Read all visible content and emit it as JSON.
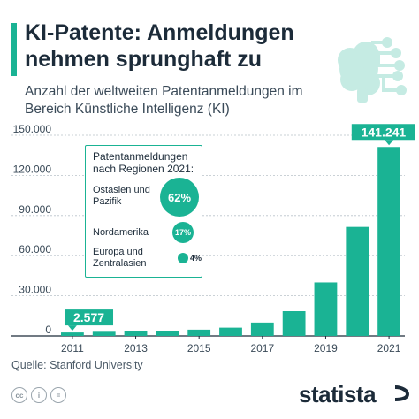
{
  "header": {
    "title": "KI-Patente: Anmeldungen nehmen sprunghaft zu",
    "subtitle": "Anzahl der weltweiten Patentanmeldungen im Bereich Künstliche Intelligenz (KI)"
  },
  "chart_data": {
    "type": "bar",
    "categories": [
      "2011",
      "2012",
      "2013",
      "2014",
      "2015",
      "2016",
      "2017",
      "2018",
      "2019",
      "2020",
      "2021"
    ],
    "values": [
      2577,
      3100,
      3500,
      3900,
      4700,
      6200,
      10000,
      18500,
      40000,
      81500,
      141241
    ],
    "x_tick_labels": [
      "2011",
      "2013",
      "2015",
      "2017",
      "2019",
      "2021"
    ],
    "y_ticks": [
      0,
      30000,
      60000,
      90000,
      120000,
      150000
    ],
    "y_tick_labels": [
      "0",
      "30.000",
      "60.000",
      "90.000",
      "120.000",
      "150.000"
    ],
    "ylim": [
      0,
      150000
    ],
    "grid": true,
    "bar_color": "#1ab394",
    "callouts": [
      {
        "category": "2011",
        "label": "2.577"
      },
      {
        "category": "2021",
        "label": "141.241"
      }
    ]
  },
  "legend": {
    "title": "Patentanmeldungen nach Regionen 2021:",
    "regions": [
      {
        "name": "Ostasien und Pazifik",
        "share": "62%",
        "value": 62
      },
      {
        "name": "Nordamerika",
        "share": "17%",
        "value": 17
      },
      {
        "name": "Europa und Zentralasien",
        "share": "4%",
        "value": 4
      }
    ]
  },
  "footer": {
    "source": "Quelle: Stanford University",
    "logo": "statista",
    "icons": [
      "cc-icon",
      "by-icon",
      "nd-icon"
    ]
  },
  "colors": {
    "accent": "#1ab394",
    "text": "#1c2b39",
    "brain": "#c5ebe3"
  }
}
